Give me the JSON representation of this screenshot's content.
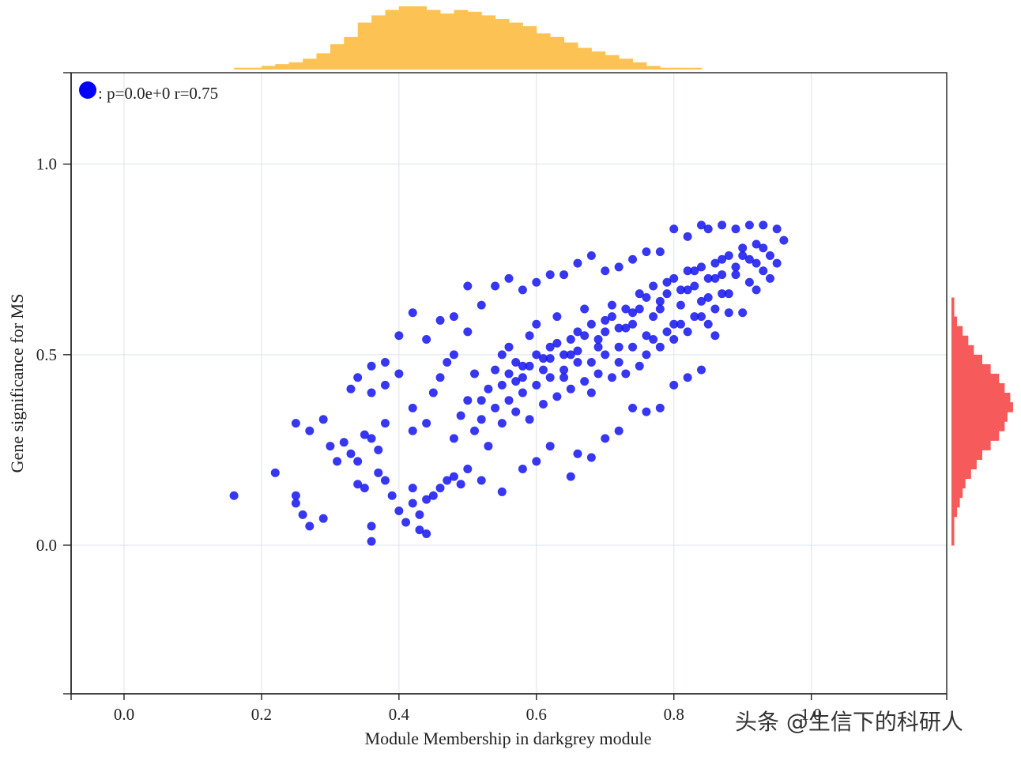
{
  "chart_data": {
    "type": "scatter",
    "xlabel": "Module Membership in darkgrey module",
    "ylabel": "Gene significance for MS",
    "xlim": [
      -0.077,
      1.197
    ],
    "ylim": [
      -0.39,
      1.24
    ],
    "x_ticks": [
      "0.0",
      "0.2",
      "0.4",
      "0.6",
      "0.8",
      "1.0"
    ],
    "x_tick_values": [
      0.0,
      0.2,
      0.4,
      0.6,
      0.8,
      1.0
    ],
    "y_ticks": [
      "0.0",
      "0.5",
      "1.0"
    ],
    "y_tick_values": [
      0.0,
      0.5,
      1.0
    ],
    "grid": true,
    "legend": {
      "placement": "top-left",
      "text": ": p=0.0e+0 r=0.75",
      "marker_color": "#0000ff"
    },
    "series": [
      {
        "color": "#1414f0",
        "points": [
          [
            0.16,
            0.13
          ],
          [
            0.22,
            0.19
          ],
          [
            0.25,
            0.13
          ],
          [
            0.25,
            0.11
          ],
          [
            0.26,
            0.08
          ],
          [
            0.27,
            0.05
          ],
          [
            0.29,
            0.07
          ],
          [
            0.25,
            0.32
          ],
          [
            0.27,
            0.3
          ],
          [
            0.29,
            0.33
          ],
          [
            0.3,
            0.26
          ],
          [
            0.31,
            0.22
          ],
          [
            0.32,
            0.27
          ],
          [
            0.33,
            0.24
          ],
          [
            0.34,
            0.22
          ],
          [
            0.35,
            0.29
          ],
          [
            0.36,
            0.28
          ],
          [
            0.37,
            0.25
          ],
          [
            0.38,
            0.32
          ],
          [
            0.34,
            0.16
          ],
          [
            0.35,
            0.15
          ],
          [
            0.36,
            0.05
          ],
          [
            0.36,
            0.01
          ],
          [
            0.37,
            0.19
          ],
          [
            0.38,
            0.17
          ],
          [
            0.39,
            0.13
          ],
          [
            0.4,
            0.09
          ],
          [
            0.41,
            0.06
          ],
          [
            0.42,
            0.11
          ],
          [
            0.43,
            0.04
          ],
          [
            0.44,
            0.03
          ],
          [
            0.43,
            0.08
          ],
          [
            0.42,
            0.15
          ],
          [
            0.44,
            0.12
          ],
          [
            0.45,
            0.13
          ],
          [
            0.46,
            0.15
          ],
          [
            0.47,
            0.17
          ],
          [
            0.48,
            0.18
          ],
          [
            0.49,
            0.16
          ],
          [
            0.5,
            0.2
          ],
          [
            0.52,
            0.17
          ],
          [
            0.55,
            0.14
          ],
          [
            0.58,
            0.2
          ],
          [
            0.6,
            0.22
          ],
          [
            0.62,
            0.26
          ],
          [
            0.65,
            0.18
          ],
          [
            0.66,
            0.24
          ],
          [
            0.68,
            0.23
          ],
          [
            0.7,
            0.28
          ],
          [
            0.72,
            0.3
          ],
          [
            0.74,
            0.36
          ],
          [
            0.76,
            0.35
          ],
          [
            0.78,
            0.36
          ],
          [
            0.8,
            0.42
          ],
          [
            0.82,
            0.44
          ],
          [
            0.84,
            0.46
          ],
          [
            0.86,
            0.55
          ],
          [
            0.88,
            0.61
          ],
          [
            0.9,
            0.61
          ],
          [
            0.92,
            0.67
          ],
          [
            0.94,
            0.7
          ],
          [
            0.95,
            0.74
          ],
          [
            0.95,
            0.83
          ],
          [
            0.96,
            0.8
          ],
          [
            0.93,
            0.84
          ],
          [
            0.91,
            0.84
          ],
          [
            0.89,
            0.83
          ],
          [
            0.87,
            0.84
          ],
          [
            0.85,
            0.83
          ],
          [
            0.84,
            0.84
          ],
          [
            0.82,
            0.81
          ],
          [
            0.8,
            0.83
          ],
          [
            0.78,
            0.77
          ],
          [
            0.76,
            0.77
          ],
          [
            0.74,
            0.75
          ],
          [
            0.72,
            0.73
          ],
          [
            0.7,
            0.72
          ],
          [
            0.68,
            0.76
          ],
          [
            0.66,
            0.74
          ],
          [
            0.64,
            0.71
          ],
          [
            0.62,
            0.71
          ],
          [
            0.6,
            0.69
          ],
          [
            0.58,
            0.67
          ],
          [
            0.56,
            0.7
          ],
          [
            0.54,
            0.68
          ],
          [
            0.52,
            0.63
          ],
          [
            0.5,
            0.68
          ],
          [
            0.48,
            0.6
          ],
          [
            0.46,
            0.59
          ],
          [
            0.44,
            0.54
          ],
          [
            0.42,
            0.61
          ],
          [
            0.4,
            0.55
          ],
          [
            0.38,
            0.48
          ],
          [
            0.36,
            0.47
          ],
          [
            0.34,
            0.44
          ],
          [
            0.33,
            0.41
          ],
          [
            0.36,
            0.4
          ],
          [
            0.38,
            0.42
          ],
          [
            0.4,
            0.45
          ],
          [
            0.42,
            0.36
          ],
          [
            0.42,
            0.3
          ],
          [
            0.44,
            0.32
          ],
          [
            0.45,
            0.4
          ],
          [
            0.46,
            0.44
          ],
          [
            0.47,
            0.48
          ],
          [
            0.48,
            0.5
          ],
          [
            0.5,
            0.56
          ],
          [
            0.51,
            0.45
          ],
          [
            0.52,
            0.38
          ],
          [
            0.53,
            0.41
          ],
          [
            0.54,
            0.46
          ],
          [
            0.55,
            0.5
          ],
          [
            0.56,
            0.52
          ],
          [
            0.57,
            0.43
          ],
          [
            0.58,
            0.47
          ],
          [
            0.59,
            0.55
          ],
          [
            0.6,
            0.58
          ],
          [
            0.61,
            0.49
          ],
          [
            0.62,
            0.52
          ],
          [
            0.63,
            0.6
          ],
          [
            0.64,
            0.44
          ],
          [
            0.65,
            0.5
          ],
          [
            0.66,
            0.56
          ],
          [
            0.67,
            0.62
          ],
          [
            0.68,
            0.48
          ],
          [
            0.69,
            0.54
          ],
          [
            0.7,
            0.59
          ],
          [
            0.71,
            0.63
          ],
          [
            0.72,
            0.52
          ],
          [
            0.73,
            0.57
          ],
          [
            0.74,
            0.61
          ],
          [
            0.75,
            0.66
          ],
          [
            0.76,
            0.55
          ],
          [
            0.77,
            0.6
          ],
          [
            0.78,
            0.64
          ],
          [
            0.79,
            0.69
          ],
          [
            0.8,
            0.58
          ],
          [
            0.81,
            0.63
          ],
          [
            0.82,
            0.67
          ],
          [
            0.83,
            0.72
          ],
          [
            0.84,
            0.6
          ],
          [
            0.85,
            0.65
          ],
          [
            0.86,
            0.7
          ],
          [
            0.87,
            0.75
          ],
          [
            0.88,
            0.66
          ],
          [
            0.89,
            0.71
          ],
          [
            0.9,
            0.76
          ],
          [
            0.91,
            0.69
          ],
          [
            0.92,
            0.74
          ],
          [
            0.93,
            0.78
          ],
          [
            0.48,
            0.28
          ],
          [
            0.49,
            0.34
          ],
          [
            0.5,
            0.38
          ],
          [
            0.51,
            0.3
          ],
          [
            0.52,
            0.33
          ],
          [
            0.53,
            0.26
          ],
          [
            0.54,
            0.36
          ],
          [
            0.55,
            0.32
          ],
          [
            0.56,
            0.38
          ],
          [
            0.57,
            0.35
          ],
          [
            0.58,
            0.4
          ],
          [
            0.59,
            0.33
          ],
          [
            0.6,
            0.42
          ],
          [
            0.61,
            0.37
          ],
          [
            0.62,
            0.44
          ],
          [
            0.63,
            0.39
          ],
          [
            0.64,
            0.46
          ],
          [
            0.65,
            0.41
          ],
          [
            0.66,
            0.48
          ],
          [
            0.67,
            0.43
          ],
          [
            0.68,
            0.4
          ],
          [
            0.69,
            0.45
          ],
          [
            0.7,
            0.5
          ],
          [
            0.71,
            0.44
          ],
          [
            0.72,
            0.48
          ],
          [
            0.73,
            0.45
          ],
          [
            0.74,
            0.52
          ],
          [
            0.75,
            0.47
          ],
          [
            0.76,
            0.5
          ],
          [
            0.77,
            0.54
          ],
          [
            0.78,
            0.52
          ],
          [
            0.79,
            0.56
          ],
          [
            0.8,
            0.54
          ],
          [
            0.81,
            0.58
          ],
          [
            0.82,
            0.56
          ],
          [
            0.83,
            0.6
          ],
          [
            0.84,
            0.64
          ],
          [
            0.85,
            0.58
          ],
          [
            0.86,
            0.62
          ],
          [
            0.87,
            0.66
          ],
          [
            0.55,
            0.42
          ],
          [
            0.56,
            0.45
          ],
          [
            0.57,
            0.48
          ],
          [
            0.58,
            0.44
          ],
          [
            0.59,
            0.47
          ],
          [
            0.6,
            0.5
          ],
          [
            0.61,
            0.46
          ],
          [
            0.62,
            0.49
          ],
          [
            0.63,
            0.53
          ],
          [
            0.64,
            0.5
          ],
          [
            0.65,
            0.54
          ],
          [
            0.66,
            0.51
          ],
          [
            0.67,
            0.55
          ],
          [
            0.68,
            0.58
          ],
          [
            0.69,
            0.52
          ],
          [
            0.7,
            0.56
          ],
          [
            0.71,
            0.6
          ],
          [
            0.72,
            0.57
          ],
          [
            0.73,
            0.62
          ],
          [
            0.74,
            0.58
          ],
          [
            0.75,
            0.62
          ],
          [
            0.76,
            0.65
          ],
          [
            0.77,
            0.68
          ],
          [
            0.78,
            0.62
          ],
          [
            0.79,
            0.66
          ],
          [
            0.8,
            0.7
          ],
          [
            0.81,
            0.67
          ],
          [
            0.82,
            0.72
          ],
          [
            0.83,
            0.68
          ],
          [
            0.84,
            0.73
          ],
          [
            0.85,
            0.7
          ],
          [
            0.86,
            0.74
          ],
          [
            0.87,
            0.71
          ],
          [
            0.88,
            0.76
          ],
          [
            0.89,
            0.73
          ],
          [
            0.9,
            0.78
          ],
          [
            0.91,
            0.75
          ],
          [
            0.92,
            0.79
          ],
          [
            0.93,
            0.72
          ],
          [
            0.94,
            0.76
          ]
        ]
      }
    ],
    "marginal_x_histogram": {
      "color": "#fcc354",
      "bin_start": 0.16,
      "bin_width": 0.02,
      "counts": [
        1,
        1,
        2,
        3,
        4,
        6,
        9,
        14,
        18,
        26,
        30,
        33,
        35,
        35,
        33,
        31,
        33,
        32,
        30,
        28,
        26,
        24,
        20,
        18,
        15,
        12,
        10,
        8,
        6,
        4,
        2,
        1,
        1,
        1
      ]
    },
    "marginal_y_histogram": {
      "color": "#f75a5a",
      "bin_start": 0.0,
      "bin_width": 0.025,
      "counts": [
        1,
        1,
        1,
        2,
        3,
        4,
        5,
        7,
        9,
        11,
        14,
        17,
        19,
        20,
        22,
        21,
        19,
        17,
        14,
        11,
        8,
        6,
        4,
        2,
        1,
        1
      ]
    }
  },
  "watermark": "头条 @生信下的科研人"
}
